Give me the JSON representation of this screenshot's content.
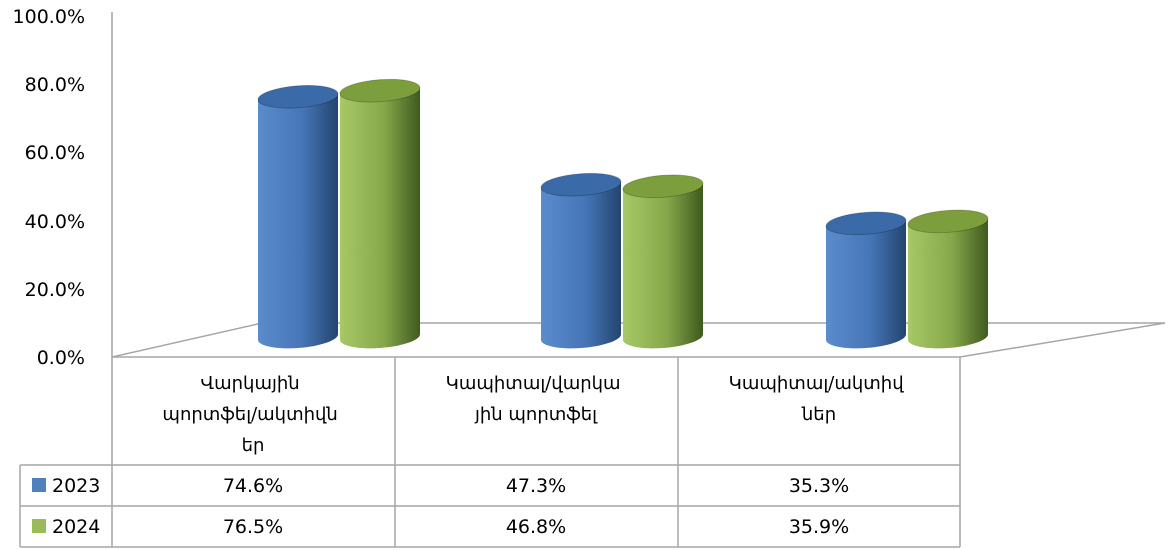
{
  "chart_data": {
    "type": "bar",
    "style": "3d-cylinder",
    "categories": [
      [
        "Վարկային",
        "պորտֆել/ակտիվն",
        "եր"
      ],
      [
        "Կապիտալ/վարկա",
        "յին պորտֆել"
      ],
      [
        "Կապիտալ/ակտիվ",
        "ներ"
      ]
    ],
    "series": [
      {
        "name": "2023",
        "values": [
          74.6,
          47.3,
          35.3
        ],
        "labels": [
          "74.6%",
          "47.3%",
          "35.3%"
        ],
        "color": "#4f81bd"
      },
      {
        "name": "2024",
        "values": [
          76.5,
          46.8,
          35.9
        ],
        "labels": [
          "76.5%",
          "46.8%",
          "35.9%"
        ],
        "color": "#9bbb59"
      }
    ],
    "y_ticks": [
      "0.0%",
      "20.0%",
      "40.0%",
      "60.0%",
      "80.0%",
      "100.0%"
    ],
    "ylim": [
      0,
      100
    ],
    "grid": false,
    "legend": "data-table"
  }
}
